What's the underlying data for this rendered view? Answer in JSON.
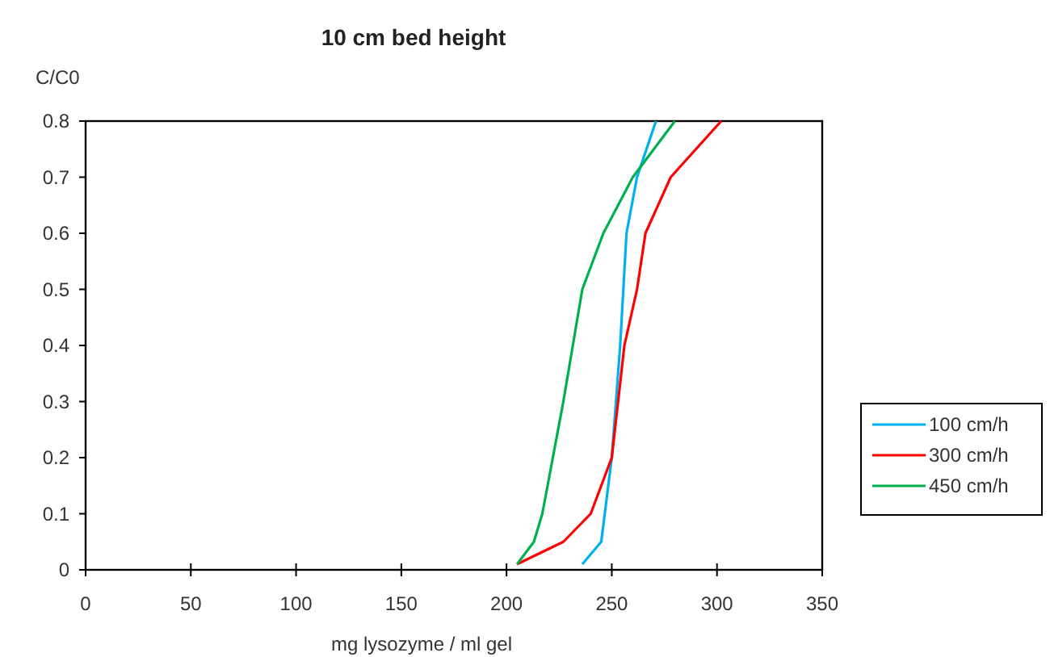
{
  "chart_data": {
    "type": "line",
    "title": "10 cm bed height",
    "xlabel": "mg lysozyme / ml gel",
    "ylabel": "C/C0",
    "xlim": [
      0,
      350
    ],
    "xticks": [
      0,
      50,
      100,
      150,
      200,
      250,
      300,
      350
    ],
    "ylim": [
      0,
      0.8
    ],
    "yticks": [
      0,
      0.1,
      0.2,
      0.3,
      0.4,
      0.5,
      0.6,
      0.7,
      0.8
    ],
    "grid": false,
    "legend": "right",
    "marker": "none",
    "line_style": "solid",
    "series": [
      {
        "name": "100 cm/h",
        "color": "#00b0f0",
        "x": [
          236,
          245,
          250,
          254,
          257,
          262,
          271
        ],
        "values": [
          0.01,
          0.05,
          0.2,
          0.4,
          0.6,
          0.7,
          0.8
        ]
      },
      {
        "name": "300 cm/h",
        "color": "#ff0000",
        "x": [
          205,
          227,
          240,
          250,
          256,
          262,
          266,
          278,
          302
        ],
        "values": [
          0.01,
          0.05,
          0.1,
          0.2,
          0.4,
          0.5,
          0.6,
          0.7,
          0.8
        ]
      },
      {
        "name": "450 cm/h",
        "color": "#00b050",
        "x": [
          205,
          213,
          217,
          222,
          227,
          236,
          246,
          260,
          280
        ],
        "values": [
          0.01,
          0.05,
          0.1,
          0.2,
          0.3,
          0.5,
          0.6,
          0.7,
          0.8
        ]
      }
    ]
  }
}
